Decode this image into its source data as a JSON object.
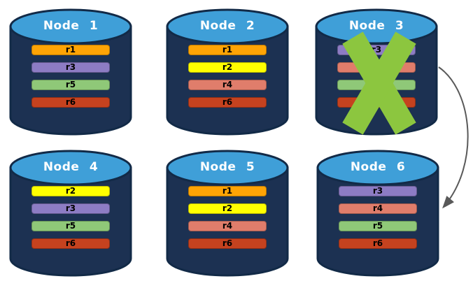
{
  "diagram": {
    "description": "Database replica placement across six nodes; Node 3 has failed and its replicas are re-created on Node 6",
    "nodes": [
      {
        "id": "node-1",
        "label": "Node 1",
        "failed": false,
        "replicas": [
          {
            "label": "r1",
            "color": "#FFA405"
          },
          {
            "label": "r3",
            "color": "#8D7CC4"
          },
          {
            "label": "r5",
            "color": "#8FC878"
          },
          {
            "label": "r6",
            "color": "#C5421F"
          }
        ]
      },
      {
        "id": "node-2",
        "label": "Node 2",
        "failed": false,
        "replicas": [
          {
            "label": "r1",
            "color": "#FFA405"
          },
          {
            "label": "r2",
            "color": "#FFFF00"
          },
          {
            "label": "r4",
            "color": "#E07D6B"
          },
          {
            "label": "r6",
            "color": "#C5421F"
          }
        ]
      },
      {
        "id": "node-3",
        "label": "Node 3",
        "failed": true,
        "replicas": [
          {
            "label": "r3",
            "color": "#8D7CC4"
          },
          {
            "label": "r4",
            "color": "#E07D6B"
          },
          {
            "label": "r5",
            "color": "#8FC878"
          },
          {
            "label": "r6",
            "color": "#C5421F"
          }
        ]
      },
      {
        "id": "node-4",
        "label": "Node 4",
        "failed": false,
        "replicas": [
          {
            "label": "r2",
            "color": "#FFFF00"
          },
          {
            "label": "r3",
            "color": "#8D7CC4"
          },
          {
            "label": "r5",
            "color": "#8FC878"
          },
          {
            "label": "r6",
            "color": "#C5421F"
          }
        ]
      },
      {
        "id": "node-5",
        "label": "Node 5",
        "failed": false,
        "replicas": [
          {
            "label": "r1",
            "color": "#FFA405"
          },
          {
            "label": "r2",
            "color": "#FFFF00"
          },
          {
            "label": "r4",
            "color": "#E07D6B"
          },
          {
            "label": "r6",
            "color": "#C5421F"
          }
        ]
      },
      {
        "id": "node-6",
        "label": "Node 6",
        "failed": false,
        "replicas": [
          {
            "label": "r3",
            "color": "#8D7CC4"
          },
          {
            "label": "r4",
            "color": "#E07D6B"
          },
          {
            "label": "r5",
            "color": "#8FC878"
          },
          {
            "label": "r6",
            "color": "#C5421F"
          }
        ]
      }
    ],
    "arrow": {
      "from": "node-3",
      "to": "node-6",
      "color": "#595959"
    },
    "failure_mark": {
      "node": "node-3",
      "symbol": "X",
      "color": "#8CC63F"
    },
    "colors": {
      "cylinder_body": "#1C3152",
      "cylinder_top": "#3F9FD8",
      "cylinder_border": "#122A47",
      "title_text": "#FFFFFF",
      "bar_text": "#000000",
      "background": "#FFFFFF"
    }
  }
}
